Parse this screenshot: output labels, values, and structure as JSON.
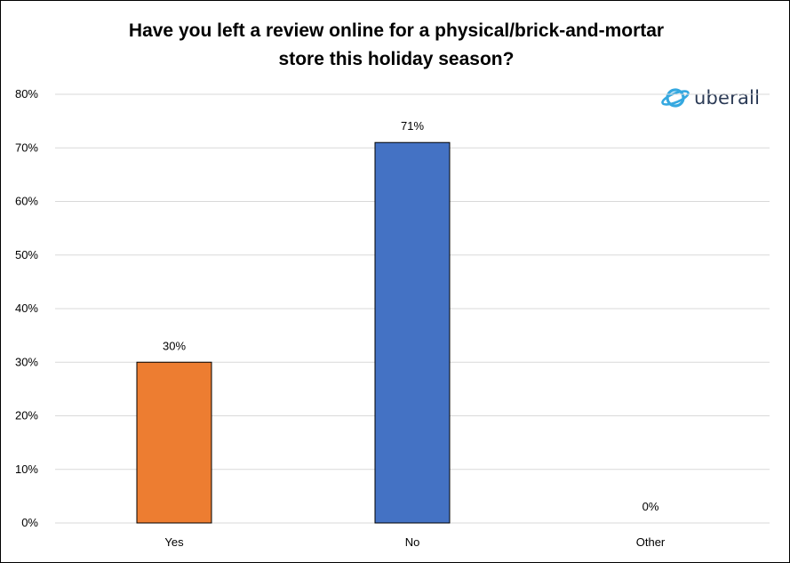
{
  "chart_data": {
    "type": "bar",
    "title_lines": [
      "Have you left a review online for a physical/brick-and-mortar",
      "store this holiday season?"
    ],
    "categories": [
      "Yes",
      "No",
      "Other"
    ],
    "values": [
      30,
      71,
      0
    ],
    "data_labels": [
      "30%",
      "71%",
      "0%"
    ],
    "bar_colors": [
      "#ED7D31",
      "#4472C4",
      "#A5A5A5"
    ],
    "ylim": [
      0,
      80
    ],
    "yticks": [
      0,
      10,
      20,
      30,
      40,
      50,
      60,
      70,
      80
    ],
    "ytick_labels": [
      "0%",
      "10%",
      "20%",
      "30%",
      "40%",
      "50%",
      "60%",
      "70%",
      "80%"
    ],
    "xlabel": "",
    "ylabel": "",
    "grid": true,
    "legend": "none"
  },
  "logo": {
    "text": "uberall",
    "icon": "globe-ring-icon",
    "color": "#35A8E0"
  }
}
